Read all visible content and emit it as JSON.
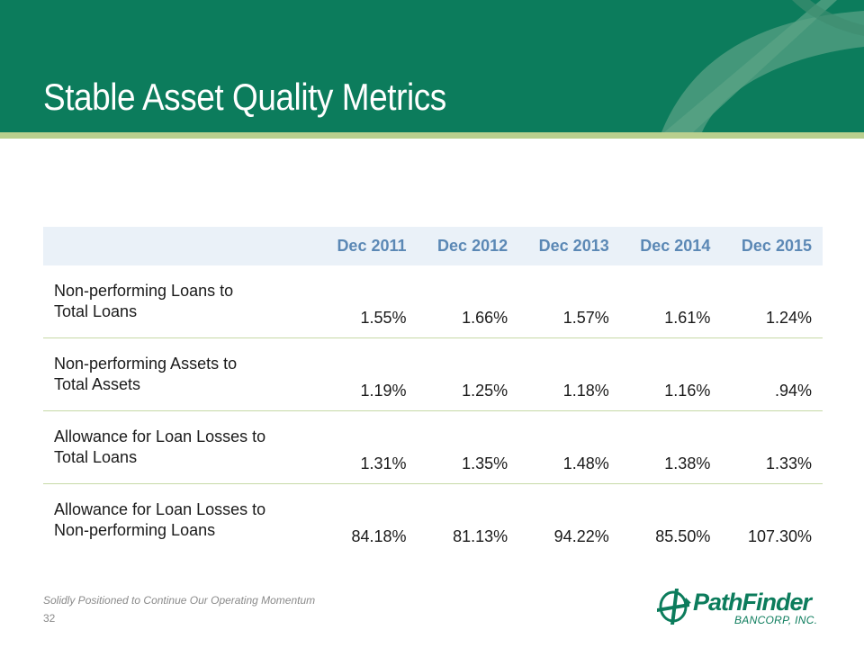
{
  "slide": {
    "title": "Stable Asset Quality Metrics",
    "tagline": "Solidly Positioned to Continue Our Operating Momentum",
    "page_number": "32"
  },
  "table": {
    "columns": [
      "",
      "Dec 2011",
      "Dec 2012",
      "Dec 2013",
      "Dec 2014",
      "Dec 2015"
    ],
    "rows": [
      {
        "label_line1": "Non-performing Loans to",
        "label_line2": "Total Loans",
        "values": [
          "1.55%",
          "1.66%",
          "1.57%",
          "1.61%",
          "1.24%"
        ]
      },
      {
        "label_line1": "Non-performing Assets to",
        "label_line2": "Total Assets",
        "values": [
          "1.19%",
          "1.25%",
          "1.18%",
          "1.16%",
          ".94%"
        ]
      },
      {
        "label_line1": "Allowance for Loan Losses to",
        "label_line2": "Total Loans",
        "values": [
          "1.31%",
          "1.35%",
          "1.48%",
          "1.38%",
          "1.33%"
        ]
      },
      {
        "label_line1": "Allowance for Loan Losses to",
        "label_line2": "Non-performing Loans",
        "values": [
          "84.18%",
          "81.13%",
          "94.22%",
          "85.50%",
          "107.30%"
        ]
      }
    ]
  },
  "logo": {
    "name": "PathFinder",
    "subtitle": "BANCORP, INC.",
    "icon": "compass-arrow-icon"
  },
  "colors": {
    "header_green": "#0c7c5c",
    "accent_rule": "#b9cf8e",
    "table_header_bg": "#eaf1f8",
    "table_header_text": "#5b88b5"
  }
}
